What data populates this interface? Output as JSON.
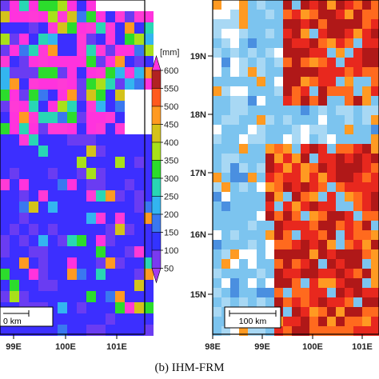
{
  "left_panel": {
    "x_ticks": [
      "99E",
      "100E",
      "101E"
    ],
    "scale_bar": "0 km"
  },
  "colorbar": {
    "unit": "[mm]",
    "ticks": [
      "600",
      "550",
      "500",
      "450",
      "400",
      "350",
      "300",
      "250",
      "200",
      "150",
      "100",
      "50"
    ],
    "colors": [
      "#ff33dd",
      "#b22222",
      "#ff5a1e",
      "#ff9a22",
      "#d4c21a",
      "#a8e01a",
      "#2cdc2c",
      "#29d6b4",
      "#33b5f0",
      "#3a78f0",
      "#3333ff",
      "#7a3af0",
      "#a43af0"
    ]
  },
  "right_panel": {
    "caption": "(b) IHM-FRM",
    "x_ticks": [
      "98E",
      "99E",
      "100E",
      "101E"
    ],
    "y_ticks": [
      "19N",
      "18N",
      "17N",
      "16N",
      "15N"
    ],
    "scale_bar": "100 km"
  }
}
